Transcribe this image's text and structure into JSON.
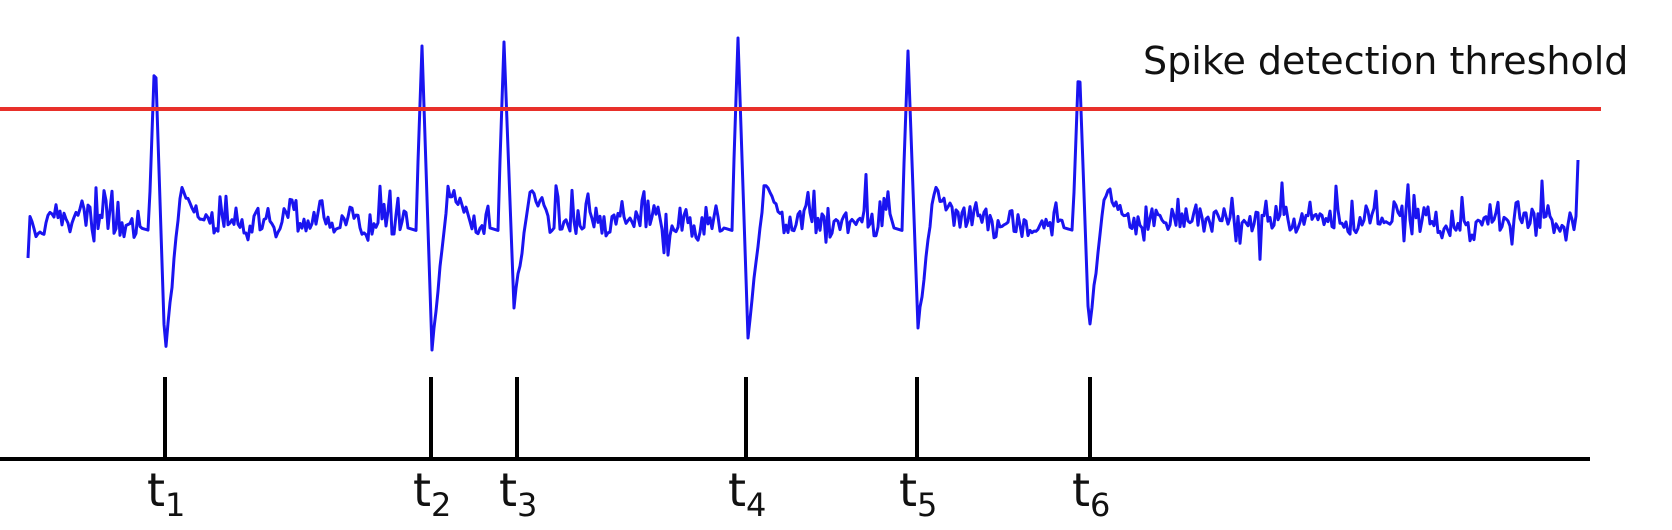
{
  "threshold": {
    "label": "Spike detection threshold"
  },
  "spike_markers": [
    {
      "name": "t",
      "sub": "1"
    },
    {
      "name": "t",
      "sub": "2"
    },
    {
      "name": "t",
      "sub": "3"
    },
    {
      "name": "t",
      "sub": "4"
    },
    {
      "name": "t",
      "sub": "5"
    },
    {
      "name": "t",
      "sub": "6"
    }
  ],
  "colors": {
    "signal": "#1a14f0",
    "threshold": "#e8302a",
    "axis": "#000000"
  }
}
